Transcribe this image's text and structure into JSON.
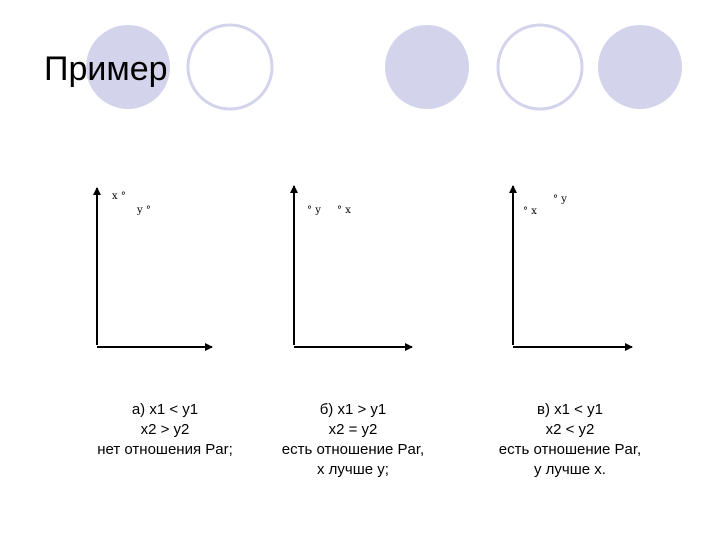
{
  "title": "Пример",
  "decor": {
    "circle_fill": "#d3d3ec",
    "circle_stroke": "#d3d3ec"
  },
  "graphs": [
    {
      "points": [
        {
          "label": "x",
          "marker": "°"
        },
        {
          "label": "y",
          "marker": "°"
        }
      ],
      "caption": [
        "а)   x1 < y1",
        "x2 > y2",
        "нет отношения Par;"
      ]
    },
    {
      "points": [
        {
          "label": "y",
          "marker": "°"
        },
        {
          "label": "x",
          "marker": "°"
        }
      ],
      "caption": [
        "б)   x1 > y1",
        "x2 = y2",
        "есть отношение Par,",
        "x лучше y;"
      ]
    },
    {
      "points": [
        {
          "label": "x",
          "marker": "°"
        },
        {
          "label": "y",
          "marker": "°"
        }
      ],
      "caption": [
        "в)   x1 < y1",
        "x2 < y2",
        "есть отношение Par,",
        "y лучше  x."
      ]
    }
  ]
}
